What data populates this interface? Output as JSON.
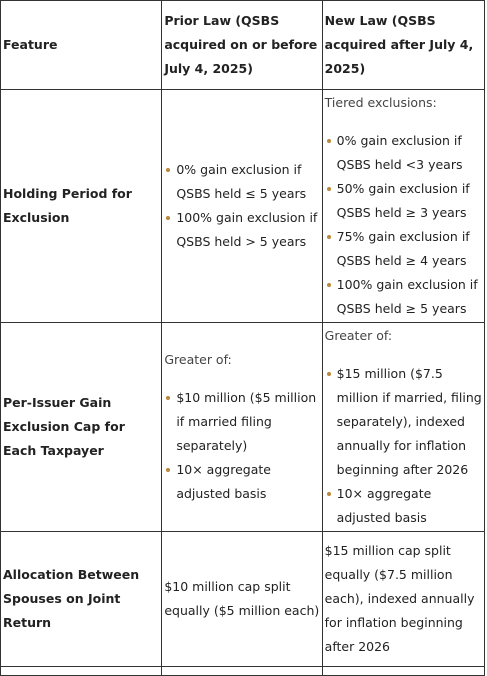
{
  "table": {
    "headers": {
      "feature": "Feature",
      "prior_law": "Prior Law (QSBS acquired on or before July 4, 2025)",
      "new_law": "New Law (QSBS acquired after July 4, 2025)"
    },
    "rows": [
      {
        "feature": "Holding Period for Exclusion",
        "prior_items": [
          "0% gain exclusion if QSBS held ≤ 5 years",
          "100% gain exclusion if QSBS held > 5 years"
        ],
        "new_intro": "Tiered exclusions:",
        "new_items": [
          "0% gain exclusion if QSBS held <3 years",
          "50% gain exclusion if QSBS held ≥ 3 years",
          "75% gain exclusion if QSBS held ≥ 4 years",
          "100% gain exclusion if QSBS held ≥ 5 years"
        ]
      },
      {
        "feature": "Per-Issuer Gain Exclusion Cap for Each Taxpayer",
        "prior_intro": "Greater of:",
        "prior_items": [
          "$10 million ($5 million if married filing separately)",
          "10× aggregate adjusted basis"
        ],
        "new_intro": "Greater of:",
        "new_items": [
          "$15 million ($7.5 million if married, filing separately), indexed annually for inflation beginning after 2026",
          "10× aggregate adjusted basis"
        ]
      },
      {
        "feature": "Allocation Between Spouses on Joint Return",
        "prior_text": "$10 million cap split equally ($5 million each)",
        "new_text": "$15 million cap split equally ($7.5 million each), indexed annually for inflation beginning after 2026"
      }
    ]
  }
}
